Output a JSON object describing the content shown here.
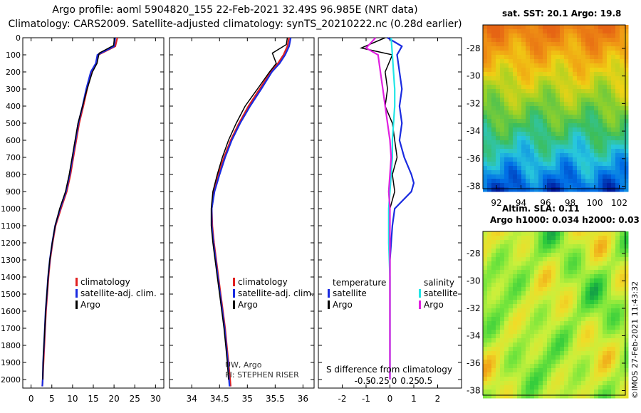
{
  "header": {
    "line1": "Argo profile: aoml 5904820_155 22-Feb-2021 32.49S 96.985E (NRT data)",
    "line2": "Climatology: CARS2009. Satellite-adjusted climatology: synTS_20210222.nc (0.28d earlier)"
  },
  "footer_stamp": "©IMOS 27-Feb-2021 11:43:32",
  "colors": {
    "clim": "#e02020",
    "sat": "#1a2be0",
    "argo": "#000000",
    "sal_sat": "#22e6e6",
    "sal_argo": "#e020e0"
  },
  "chart_data": [
    {
      "type": "line",
      "panel": "temperature",
      "ylim": [
        2050,
        0
      ],
      "xlim": [
        -2,
        32
      ],
      "yticks": [
        0,
        100,
        200,
        300,
        400,
        500,
        600,
        700,
        800,
        900,
        1000,
        1100,
        1200,
        1300,
        1400,
        1500,
        1600,
        1700,
        1800,
        1900,
        2000
      ],
      "xticks": [
        0,
        5,
        10,
        15,
        20,
        25,
        30
      ],
      "legend": [
        "climatology",
        "satellite-adj. clim.",
        "Argo"
      ],
      "series": [
        {
          "name": "climatology",
          "color_key": "clim",
          "x": [
            20.8,
            20.3,
            16.2,
            15.8,
            14.6,
            13.5,
            12.6,
            11.6,
            10.9,
            10.2,
            9.5,
            8.6,
            7.2,
            5.9,
            5.2,
            4.6,
            4.2,
            3.9,
            3.6,
            3.4,
            3.2,
            3.0,
            2.8,
            2.7
          ],
          "y": [
            0,
            50,
            100,
            150,
            200,
            300,
            400,
            500,
            600,
            700,
            800,
            900,
            1000,
            1100,
            1200,
            1300,
            1400,
            1500,
            1600,
            1700,
            1800,
            1900,
            2000,
            2040
          ]
        },
        {
          "name": "satellite-adj. clim.",
          "color_key": "sat",
          "x": [
            20.3,
            20.0,
            16.0,
            15.6,
            14.4,
            13.3,
            12.4,
            11.4,
            10.7,
            10.0,
            9.3,
            8.4,
            7.0,
            5.8,
            5.1,
            4.5,
            4.1,
            3.8,
            3.5,
            3.3,
            3.1,
            2.9,
            2.8,
            2.7
          ],
          "y": [
            0,
            50,
            100,
            150,
            200,
            300,
            400,
            500,
            600,
            700,
            800,
            900,
            1000,
            1100,
            1200,
            1300,
            1400,
            1500,
            1600,
            1700,
            1800,
            1900,
            2000,
            2040
          ]
        },
        {
          "name": "Argo",
          "color_key": "argo",
          "x": [
            20.1,
            19.9,
            16.4,
            15.9,
            14.8,
            13.5,
            12.4,
            11.3,
            10.6,
            9.9,
            9.2,
            8.3,
            6.9,
            5.8,
            5.1,
            4.5,
            4.1,
            3.8,
            3.5,
            3.3,
            3.1,
            2.9,
            2.8
          ],
          "y": [
            0,
            45,
            90,
            150,
            200,
            300,
            400,
            500,
            600,
            700,
            800,
            900,
            1000,
            1100,
            1200,
            1300,
            1400,
            1500,
            1600,
            1700,
            1800,
            1900,
            2000
          ]
        }
      ]
    },
    {
      "type": "line",
      "panel": "salinity",
      "ylim": [
        2050,
        0
      ],
      "xlim": [
        33.6,
        36.2
      ],
      "xticks": [
        34,
        34.5,
        35,
        35.5,
        36
      ],
      "legend": [
        "climatology",
        "satellite-adj. clim.",
        "Argo"
      ],
      "annotation": [
        "UW, Argo",
        "PI: STEPHEN RISER"
      ],
      "series": [
        {
          "name": "climatology",
          "color_key": "clim",
          "x": [
            35.75,
            35.72,
            35.65,
            35.55,
            35.42,
            35.22,
            35.02,
            34.85,
            34.7,
            34.58,
            34.48,
            34.4,
            34.36,
            34.37,
            34.4,
            34.44,
            34.48,
            34.52,
            34.56,
            34.6,
            34.63,
            34.66,
            34.69,
            34.7
          ],
          "y": [
            0,
            50,
            100,
            150,
            200,
            300,
            400,
            500,
            600,
            700,
            800,
            900,
            1000,
            1100,
            1200,
            1300,
            1400,
            1500,
            1600,
            1700,
            1800,
            1900,
            2000,
            2040
          ]
        },
        {
          "name": "satellite-adj. clim.",
          "color_key": "sat",
          "x": [
            35.78,
            35.75,
            35.68,
            35.58,
            35.44,
            35.25,
            35.05,
            34.87,
            34.72,
            34.6,
            34.5,
            34.41,
            34.36,
            34.36,
            34.39,
            34.43,
            34.47,
            34.51,
            34.55,
            34.59,
            34.62,
            34.65,
            34.67,
            34.68
          ],
          "y": [
            0,
            50,
            100,
            150,
            200,
            300,
            400,
            500,
            600,
            700,
            800,
            900,
            1000,
            1100,
            1200,
            1300,
            1400,
            1500,
            1600,
            1700,
            1800,
            1900,
            2000,
            2040
          ]
        },
        {
          "name": "Argo",
          "color_key": "argo",
          "x": [
            35.72,
            35.7,
            35.45,
            35.52,
            35.4,
            35.18,
            34.96,
            34.8,
            34.66,
            34.55,
            34.46,
            34.38,
            34.35,
            34.35,
            34.38,
            34.42,
            34.46,
            34.5,
            34.54,
            34.58,
            34.61,
            34.64,
            34.66
          ],
          "y": [
            0,
            40,
            90,
            150,
            200,
            300,
            400,
            500,
            600,
            700,
            800,
            900,
            1000,
            1100,
            1200,
            1300,
            1400,
            1500,
            1600,
            1700,
            1800,
            1900,
            2000
          ]
        }
      ]
    },
    {
      "type": "line",
      "panel": "difference",
      "ylim": [
        2050,
        0
      ],
      "xlim": [
        -3,
        3
      ],
      "xticks": [
        -2,
        -1,
        0,
        1,
        2
      ],
      "xticks_top_labels": [
        "-0.5",
        "-0.25",
        "0",
        "0.25",
        "0.5"
      ],
      "xlabel": "S difference from climatology",
      "legend": [
        "temperature",
        "satellite",
        "Argo",
        "salinity",
        "satellite",
        "Argo"
      ],
      "series": [
        {
          "name": "temperature satellite",
          "color_key": "sat",
          "x": [
            -0.1,
            0.5,
            0.3,
            0.4,
            0.5,
            0.4,
            0.5,
            0.4,
            0.6,
            0.9,
            1.0,
            0.9,
            0.2,
            0.1,
            0.05,
            0,
            0,
            0,
            0,
            0,
            0,
            0
          ],
          "y": [
            0,
            50,
            100,
            200,
            300,
            400,
            500,
            600,
            700,
            800,
            850,
            900,
            1000,
            1100,
            1200,
            1300,
            1400,
            1500,
            1600,
            1700,
            1800,
            2000
          ]
        },
        {
          "name": "temperature Argo",
          "color_key": "argo",
          "x": [
            -0.2,
            -1.2,
            0.1,
            -0.2,
            -0.1,
            -0.2,
            0.1,
            0.2,
            0.3,
            0.1,
            0.2,
            0.0,
            -0.05,
            0,
            0,
            0,
            0,
            0
          ],
          "y": [
            0,
            60,
            100,
            200,
            300,
            400,
            500,
            600,
            700,
            800,
            900,
            1000,
            1100,
            1300,
            1500,
            1700,
            1900,
            2000
          ]
        },
        {
          "name": "salinity satellite",
          "color_key": "sal_sat",
          "x": [
            0.05,
            0.1,
            0.15,
            0.2,
            0.2,
            0.15,
            0.1,
            0.1,
            0.05,
            0,
            -0.05,
            -0.05,
            0,
            0,
            0,
            0
          ],
          "y": [
            0,
            100,
            200,
            300,
            400,
            500,
            600,
            700,
            800,
            900,
            1000,
            1200,
            1400,
            1600,
            1800,
            2000
          ]
        },
        {
          "name": "salinity Argo",
          "color_key": "sal_argo",
          "x": [
            -0.6,
            -1.0,
            -0.5,
            -0.4,
            -0.3,
            -0.2,
            -0.1,
            0.0,
            0.05,
            0.0,
            -0.05,
            0.0,
            0.0,
            0.0,
            0.0
          ],
          "y": [
            0,
            60,
            100,
            200,
            300,
            400,
            500,
            600,
            700,
            800,
            900,
            1000,
            1200,
            1500,
            2000
          ]
        }
      ]
    },
    {
      "type": "heatmap",
      "panel": "sst_map",
      "title": "sat. SST: 20.1 Argo: 19.8",
      "xticks": [
        92,
        94,
        96,
        98,
        100,
        102
      ],
      "yticks": [
        -28,
        -30,
        -32,
        -34,
        -36,
        -38
      ]
    },
    {
      "type": "heatmap",
      "panel": "sla_map",
      "title_line1": "Altim. SLA: 0.11",
      "title_line2": "Argo h1000: 0.034 h2000: 0.03",
      "yticks": [
        -28,
        -30,
        -32,
        -34,
        -36,
        -38
      ]
    }
  ]
}
